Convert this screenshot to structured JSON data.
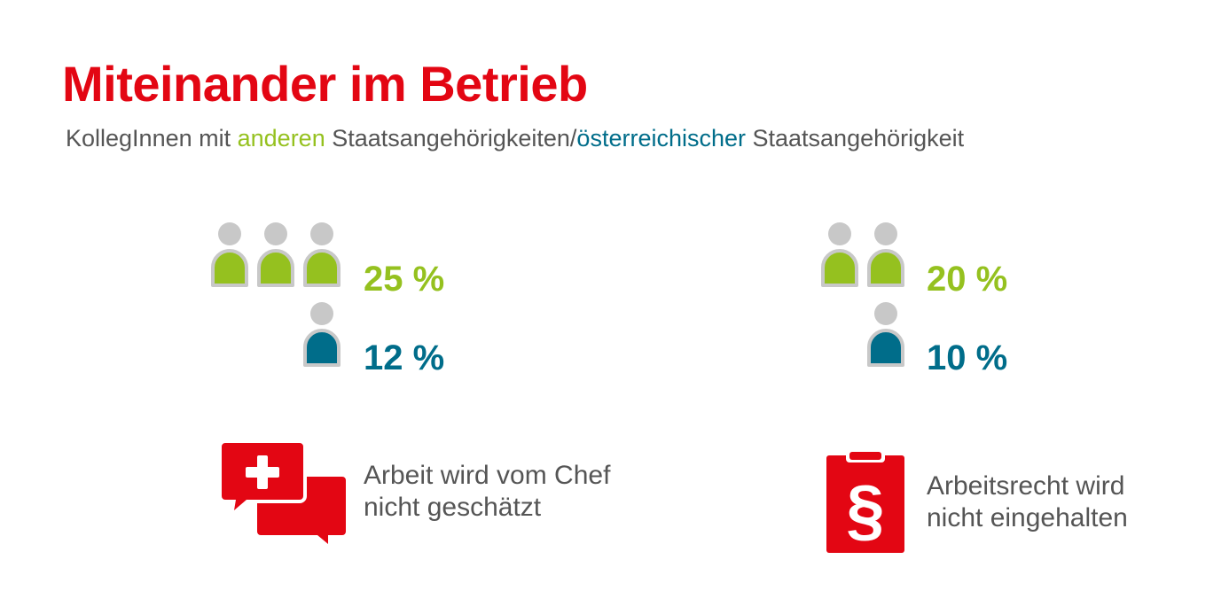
{
  "title": "Miteinander im Betrieb",
  "subtitle": {
    "part1": "KollegInnen mit ",
    "highlight1": "anderen",
    "part2": " Staatsangehörigkeiten/",
    "highlight2": "österreichischer",
    "part3": " Staatsangehörigkeit"
  },
  "colors": {
    "title": "#e30613",
    "green": "#95c11f",
    "teal": "#006d8a",
    "person_head": "#c8c8c8",
    "person_outline": "#c8c8c8",
    "text_gray": "#555555",
    "icon_red": "#e30613"
  },
  "chart_data": [
    {
      "type": "pictograph",
      "categories": [
        "anderen Staatsangehörigkeiten",
        "österreichischer Staatsangehörigkeit"
      ],
      "values": [
        25,
        12
      ],
      "labels": [
        "25 %",
        "12 %"
      ],
      "icon_counts": [
        3,
        1
      ],
      "caption": [
        "Arbeit wird vom Chef",
        "nicht geschätzt"
      ],
      "caption_icon": "speech-bubbles-plus-icon"
    },
    {
      "type": "pictograph",
      "categories": [
        "anderen Staatsangehörigkeiten",
        "österreichischer Staatsangehörigkeit"
      ],
      "values": [
        20,
        10
      ],
      "labels": [
        "20 %",
        "10 %"
      ],
      "icon_counts": [
        2,
        1
      ],
      "caption": [
        "Arbeitsrecht wird",
        "nicht eingehalten"
      ],
      "caption_icon": "clipboard-paragraph-icon"
    }
  ]
}
